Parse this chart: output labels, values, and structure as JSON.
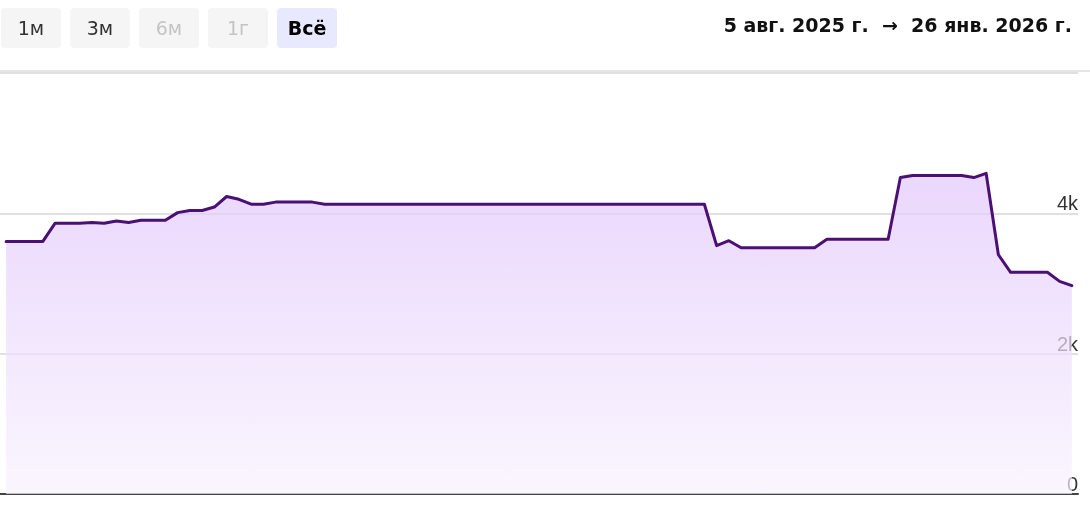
{
  "chart_data": {
    "type": "area",
    "annotations": [
      "1м",
      "3м",
      "6м",
      "1г",
      "Всё",
      "5 авг. 2025 г.  →  26 янв. 2026 г."
    ],
    "categories": [
      null,
      null,
      null,
      null,
      null,
      null,
      null,
      null,
      null,
      null,
      null,
      null,
      null,
      null,
      null,
      null,
      null,
      null,
      null,
      null,
      null,
      null,
      null,
      null,
      null,
      null,
      null,
      null,
      null,
      null,
      null,
      null,
      null,
      null,
      null,
      null,
      null,
      null,
      null,
      null,
      null,
      null,
      null,
      null,
      null,
      null,
      null,
      null,
      null,
      null,
      null,
      null,
      null,
      null,
      null,
      null,
      null,
      null,
      null,
      null,
      null,
      null,
      null,
      null,
      null,
      null,
      null,
      null,
      null,
      null,
      null,
      null,
      null,
      null,
      null,
      null,
      null,
      null,
      null,
      null,
      null,
      null,
      null,
      null,
      null,
      null,
      null,
      null
    ],
    "ylim": [
      0,
      6000
    ],
    "yticks": [
      0,
      {
        "value": 2000,
        "label": "2k"
      },
      {
        "value": 4000,
        "label": "4k"
      },
      {
        "value": 6000,
        "label": null
      }
    ],
    "grid": "y",
    "marker": "none",
    "tick_labels": "y",
    "line_style": "solid",
    "series": [
      {
        "color": "#4b1073",
        "values": [
          3600,
          3600,
          3600,
          3600,
          3860,
          3860,
          3860,
          3870,
          3860,
          3890,
          3870,
          3900,
          3900,
          3900,
          4010,
          4040,
          4040,
          4090,
          4240,
          4200,
          4130,
          4130,
          4160,
          4160,
          4160,
          4160,
          4130,
          4130,
          4130,
          4130,
          4130,
          4130,
          4130,
          4130,
          4130,
          4130,
          4130,
          4130,
          4130,
          4130,
          4130,
          4130,
          4130,
          4130,
          4130,
          4130,
          4130,
          4130,
          4130,
          4130,
          4130,
          4130,
          4130,
          4130,
          4130,
          4130,
          4130,
          4130,
          3540,
          3610,
          3510,
          3510,
          3510,
          3510,
          3510,
          3510,
          3510,
          3630,
          3630,
          3630,
          3630,
          3630,
          3630,
          4510,
          4540,
          4540,
          4540,
          4540,
          4540,
          4510,
          4570,
          3410,
          3160,
          3160,
          3160,
          3160,
          3030,
          2970
        ]
      }
    ]
  }
}
